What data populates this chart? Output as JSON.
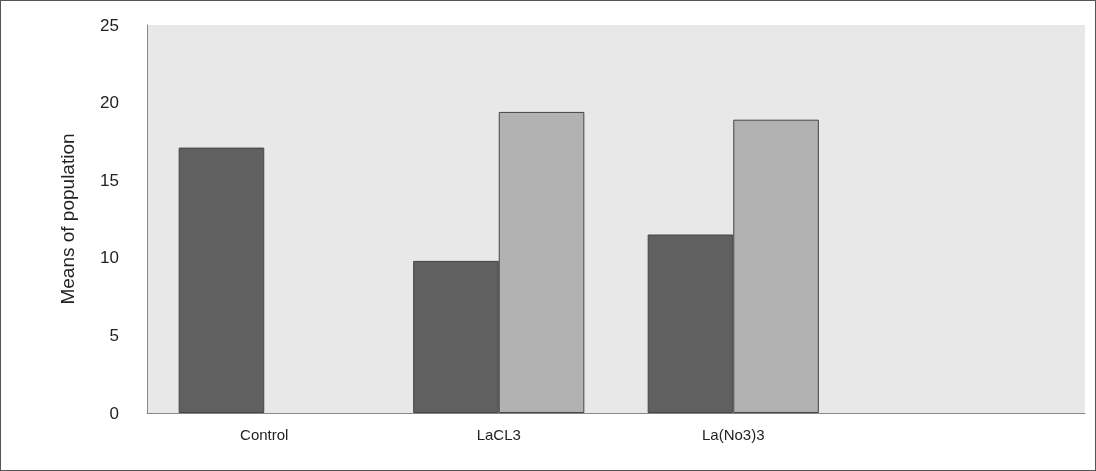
{
  "chart_data": {
    "type": "bar",
    "ylabel": "Means of population",
    "categories": [
      "Control",
      "LaCL3",
      "La(No3)3",
      null
    ],
    "series": [
      {
        "color": "#606060",
        "values": [
          17.1,
          9.8,
          11.5,
          null
        ]
      },
      {
        "color": "#b2b2b2",
        "values": [
          null,
          19.4,
          18.9,
          null
        ]
      }
    ],
    "ylim": [
      0,
      25
    ],
    "yticks": [
      0,
      5,
      10,
      15,
      20,
      25
    ],
    "grid": false
  }
}
